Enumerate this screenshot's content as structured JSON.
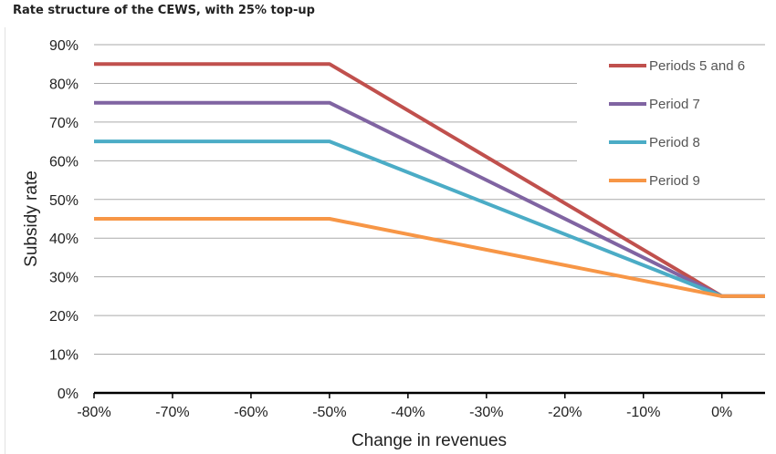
{
  "chart_data": {
    "type": "line",
    "title": "Rate structure of the CEWS, with 25% top-up",
    "xlabel": "Change in revenues",
    "ylabel": "Subsidy rate",
    "xlim": [
      -80,
      5.5
    ],
    "ylim": [
      0,
      90
    ],
    "xticks": [
      -80,
      -70,
      -60,
      -50,
      -40,
      -30,
      -20,
      -10,
      0
    ],
    "xtick_labels": [
      "-80%",
      "-70%",
      "-60%",
      "-50%",
      "-40%",
      "-30%",
      "-20%",
      "-10%",
      "0%"
    ],
    "yticks": [
      0,
      10,
      20,
      30,
      40,
      50,
      60,
      70,
      80,
      90
    ],
    "ytick_labels": [
      "0%",
      "10%",
      "20%",
      "30%",
      "40%",
      "50%",
      "60%",
      "70%",
      "80%",
      "90%"
    ],
    "grid": true,
    "legend_position": "top-right",
    "series": [
      {
        "name": "Periods 5 and 6",
        "color": "#c0504d",
        "x": [
          -80,
          -50,
          0,
          5.5
        ],
        "y": [
          85,
          85,
          25,
          25
        ]
      },
      {
        "name": "Period 7",
        "color": "#8064a2",
        "x": [
          -80,
          -50,
          0,
          5.5
        ],
        "y": [
          75,
          75,
          25,
          25
        ]
      },
      {
        "name": "Period 8",
        "color": "#4bacc6",
        "x": [
          -80,
          -50,
          0,
          5.5
        ],
        "y": [
          65,
          65,
          25,
          25
        ]
      },
      {
        "name": "Period 9",
        "color": "#f79646",
        "x": [
          -80,
          -50,
          0,
          5.5
        ],
        "y": [
          45,
          45,
          25,
          25
        ]
      }
    ]
  }
}
